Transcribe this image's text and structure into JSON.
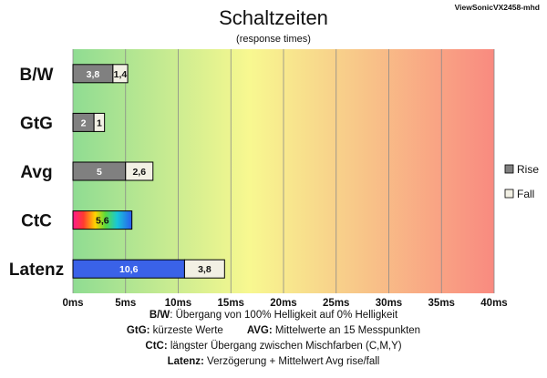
{
  "chart_data": {
    "type": "bar",
    "orientation": "horizontal",
    "stacked": true,
    "title": "Schaltzeiten",
    "subtitle": "(response times)",
    "corner_label": "ViewSonicVX2458-mhd",
    "categories": [
      "B/W",
      "GtG",
      "Avg",
      "CtC",
      "Latenz"
    ],
    "series": [
      {
        "name": "Rise",
        "values": [
          3.8,
          2,
          5,
          5.6,
          10.6
        ],
        "labels": [
          "3,8",
          "2",
          "5",
          "5,6",
          "10,6"
        ],
        "color": "#808080"
      },
      {
        "name": "Fall",
        "values": [
          1.4,
          1,
          2.6,
          null,
          3.8
        ],
        "labels": [
          "1,4",
          "1",
          "2,6",
          "",
          "3,8"
        ],
        "color": "#f2f0e4"
      }
    ],
    "special_fills": {
      "CtC": "rainbow",
      "Latenz": "#3a62e8"
    },
    "xlim": [
      0,
      40
    ],
    "xticks": [
      0,
      5,
      10,
      15,
      20,
      25,
      30,
      35,
      40
    ],
    "xtick_labels": [
      "0ms",
      "5ms",
      "10ms",
      "15ms",
      "20ms",
      "25ms",
      "30ms",
      "35ms",
      "40ms"
    ],
    "background_gradient": [
      "#8fdc92",
      "#f8f890",
      "#f98a80"
    ],
    "grid": "vertical",
    "legend_position": "right"
  },
  "footnotes": {
    "line1": {
      "key": "B/W",
      "text": ":  Übergang von 100% Helligkeit auf 0% Helligkeit"
    },
    "line2a": {
      "key": "GtG:",
      "text": " kürzeste  Werte"
    },
    "line2b": {
      "key": "AVG:",
      "text": " Mittelwerte  an 15 Messpunkten"
    },
    "line3": {
      "key": "CtC:",
      "text": " längster Übergang  zwischen Mischfarben  (C,M,Y)"
    },
    "line4": {
      "key": "Latenz:",
      "text": " Verzögerung  + Mittelwert Avg rise/fall"
    }
  }
}
